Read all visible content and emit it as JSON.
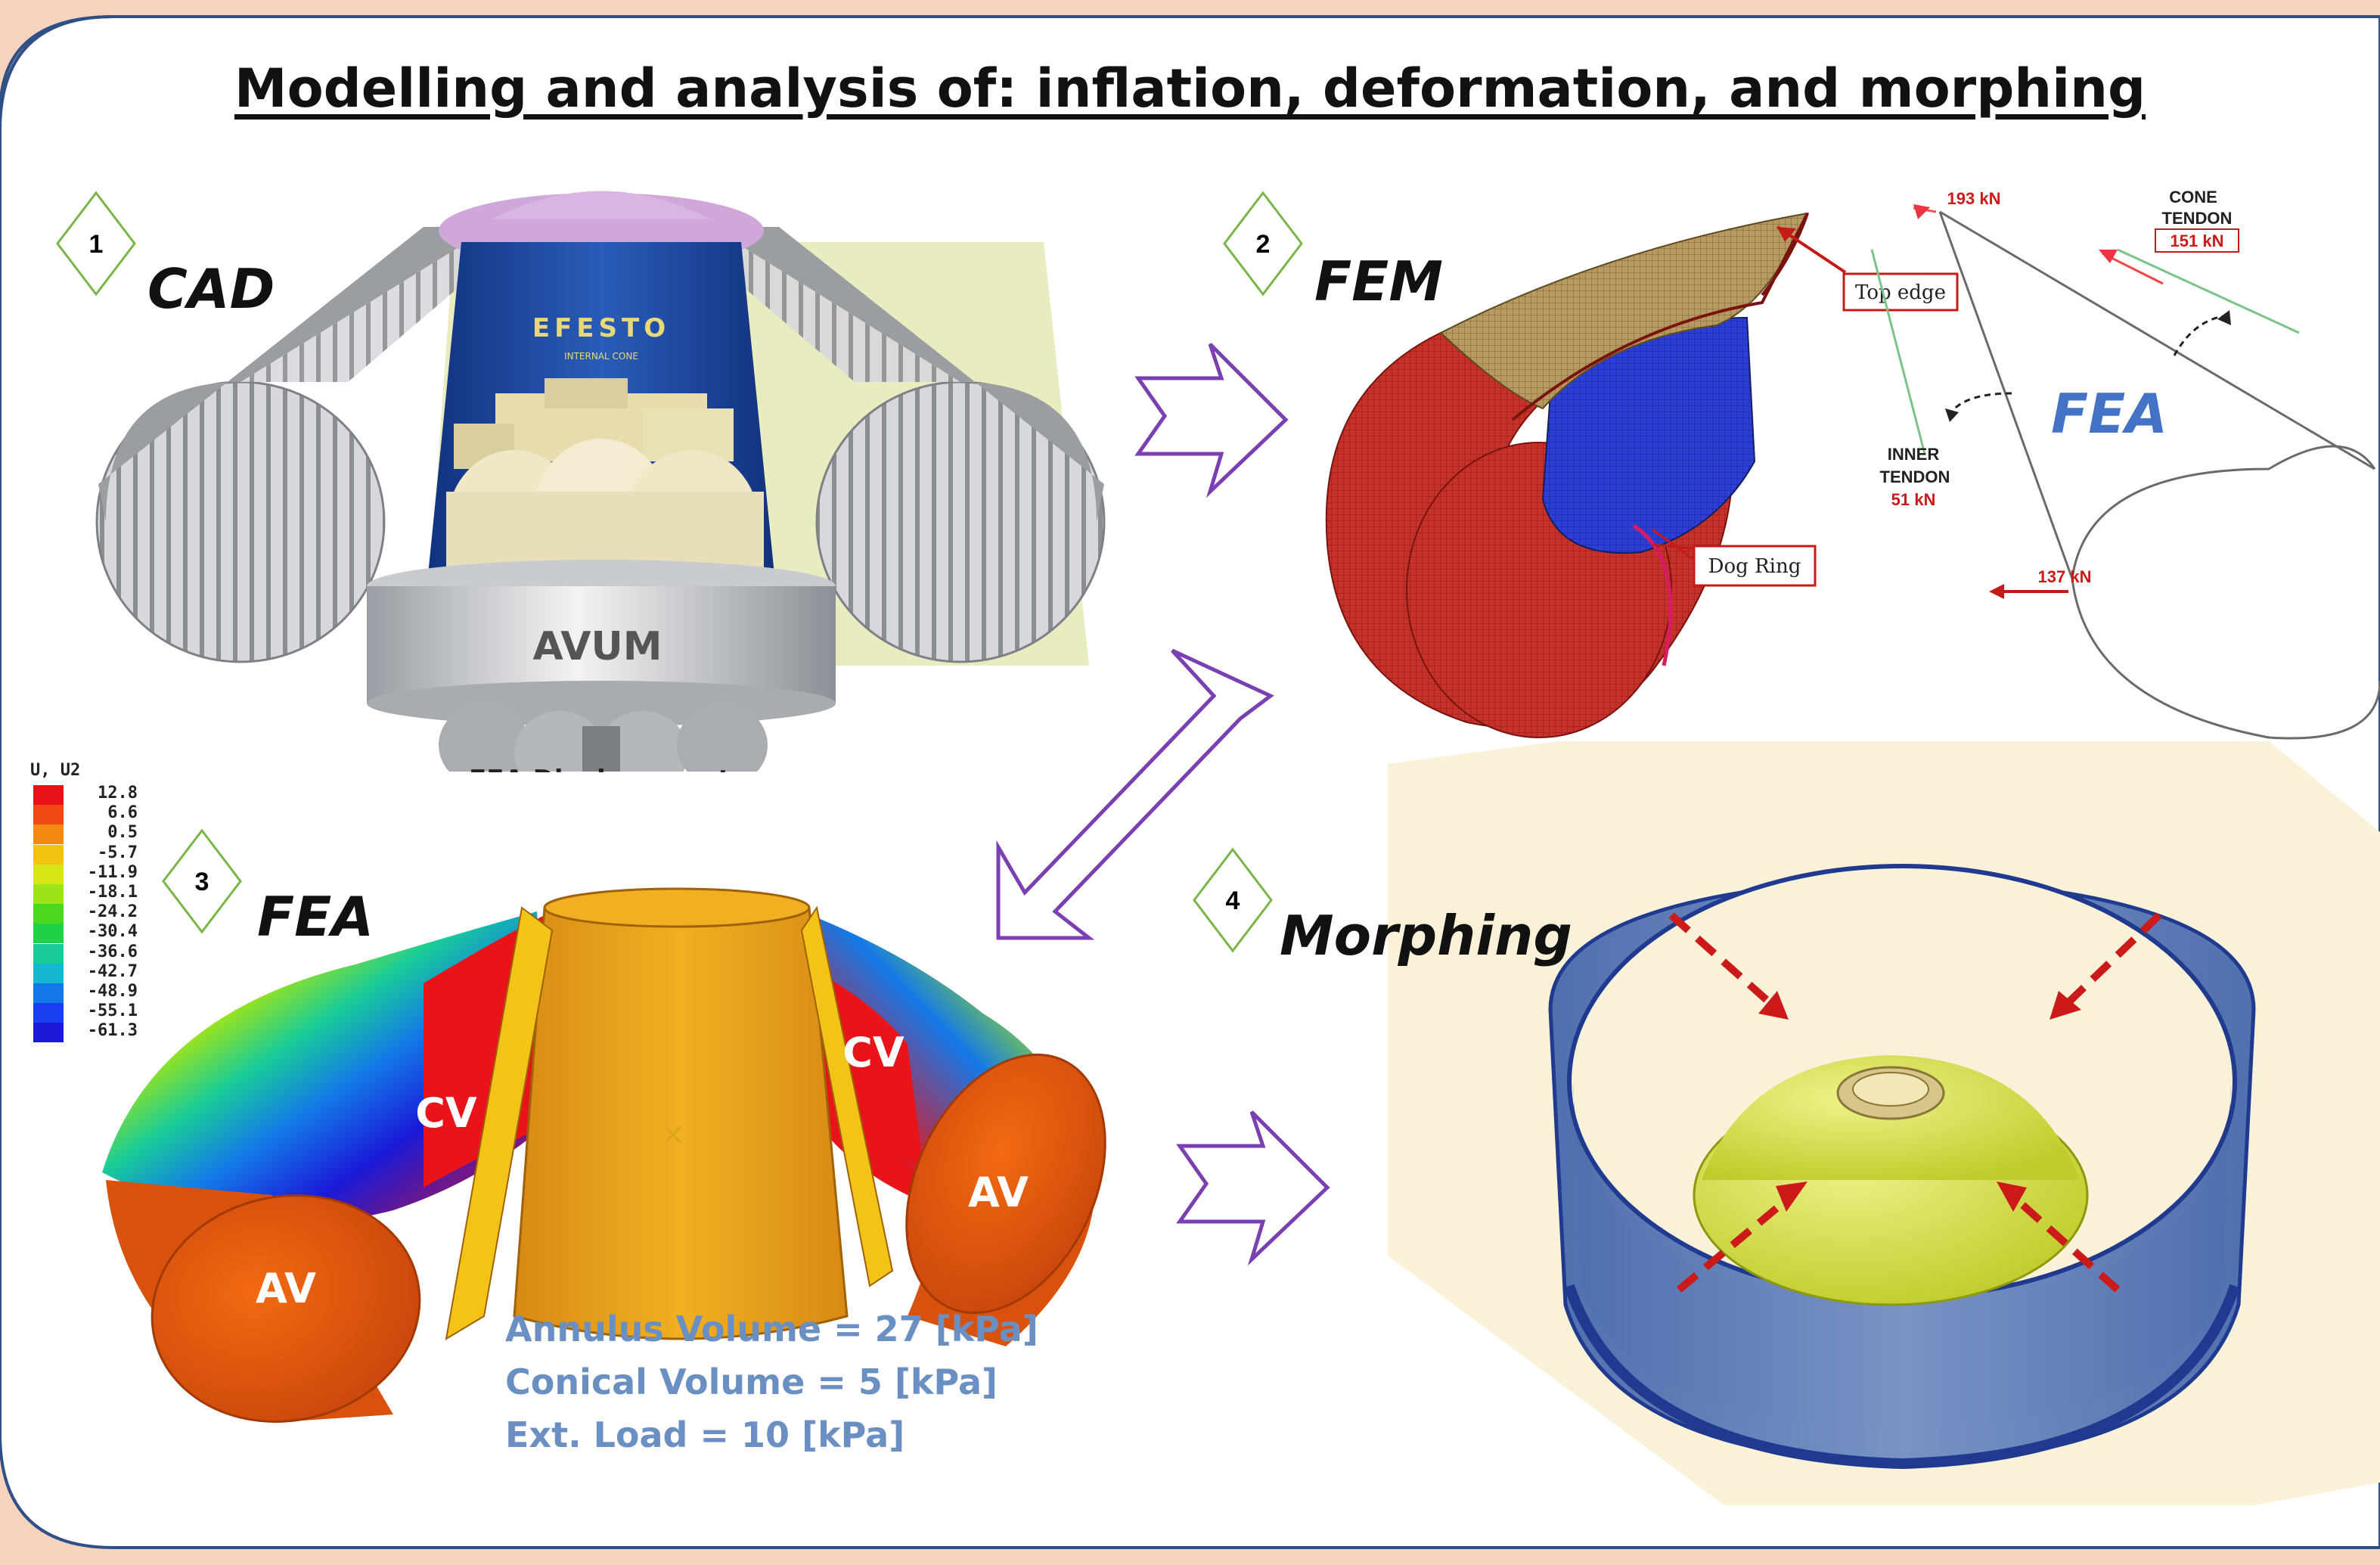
{
  "title": "Modelling and analysis of: inflation, deformation, and morphing",
  "panels": [
    {
      "number": "1",
      "label": "CAD"
    },
    {
      "number": "2",
      "label": "FEM"
    },
    {
      "number": "3",
      "label": "FEA"
    },
    {
      "number": "4",
      "label": "Morphing"
    }
  ],
  "cad": {
    "cone_text": "EFESTO",
    "cone_subtext": "INTERNAL CONE",
    "avum_label": "AVUM",
    "cropped_text": "FEA Displacement"
  },
  "fem": {
    "top_edge_label": "Top edge",
    "dog_ring_label": "Dog Ring",
    "fea_label": "FEA",
    "forces": {
      "top": "193 kN",
      "cone_tendon_label_1": "CONE",
      "cone_tendon_label_2": "TENDON",
      "cone_tendon_value": "151 kN",
      "inner_tendon_label_1": "INNER",
      "inner_tendon_label_2": "TENDON",
      "inner_tendon_value": "51 kN",
      "bottom": "137 kN"
    }
  },
  "fea": {
    "legend_title": "U, U2",
    "legend_values": [
      "12.8",
      "6.6",
      "0.5",
      "-5.7",
      "-11.9",
      "-18.1",
      "-24.2",
      "-30.4",
      "-36.6",
      "-42.7",
      "-48.9",
      "-55.1",
      "-61.3"
    ],
    "legend_colors": [
      "#e8141a",
      "#f04a14",
      "#f48a12",
      "#f2c412",
      "#d8e618",
      "#9ce41a",
      "#4cd81e",
      "#1ed247",
      "#18cc98",
      "#14b8d0",
      "#1479e8",
      "#1a3df0",
      "#1a1ad8"
    ],
    "region_labels": {
      "cv_left": "CV",
      "cv_right": "CV",
      "av_left": "AV",
      "av_right": "AV"
    },
    "notes": [
      "Annulus Volume = 27 [kPa]",
      "Conical Volume = 5 [kPa]",
      "Ext. Load = 10 [kPa]"
    ]
  },
  "colors": {
    "background": "#f6d3bd",
    "frame_stroke": "#2f4f86",
    "arrow_purple": "#7a3fb0",
    "badge_green": "#7ab548",
    "accent_blue": "#4473c5",
    "force_red": "#cc1a1a"
  }
}
